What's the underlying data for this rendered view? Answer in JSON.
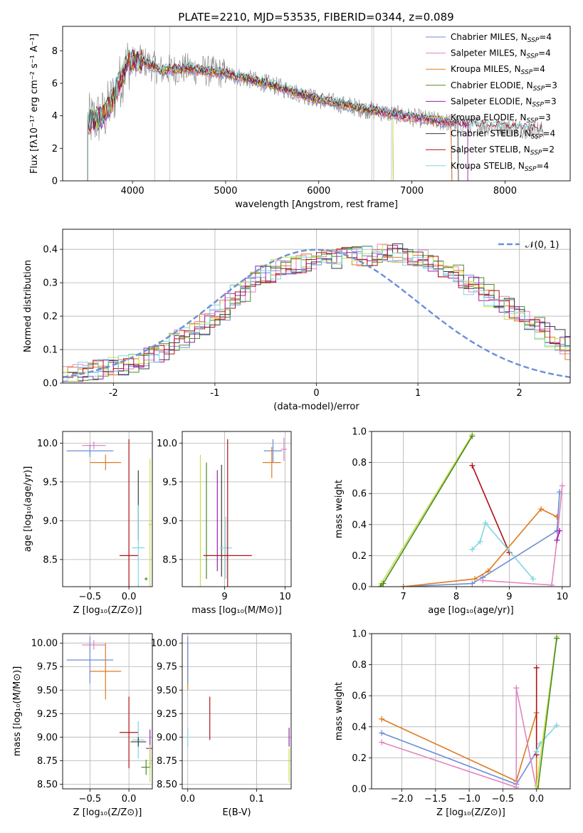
{
  "title": "PLATE=2210, MJD=53535, FIBERID=0344, z=0.089",
  "colors": {
    "chabrier_miles": "#6c8ed8",
    "salpeter_miles": "#e383c0",
    "kroupa_miles": "#e07a1f",
    "chabrier_elodie": "#4a8a2a",
    "salpeter_elodie": "#9a1fb0",
    "kroupa_elodie": "#c6e04a",
    "chabrier_stelib": "#3a3a3a",
    "salpeter_stelib": "#b01218",
    "kroupa_stelib": "#7fd6e0",
    "data": "#808080",
    "grid": "#b0b0b0"
  },
  "chart_data": [
    {
      "id": "spectrum",
      "type": "line",
      "xlabel": "wavelength [Angstrom, rest frame]",
      "ylabel": "Flux [fλ10⁻¹⁷ erg cm⁻² s⁻¹ A⁻¹]",
      "xlim": [
        3250,
        8700
      ],
      "ylim": [
        0,
        9.5
      ],
      "xticks": [
        4000,
        5000,
        6000,
        7000,
        8000
      ],
      "yticks": [
        0,
        2,
        4,
        6,
        8
      ],
      "legend": [
        {
          "key": "chabrier_miles",
          "label": "Chabrier MILES, N",
          "sub": "SSP",
          "tail": "=4"
        },
        {
          "key": "salpeter_miles",
          "label": "Salpeter MILES, N",
          "sub": "SSP",
          "tail": "=4"
        },
        {
          "key": "kroupa_miles",
          "label": "Kroupa MILES, N",
          "sub": "SSP",
          "tail": "=4"
        },
        {
          "key": "chabrier_elodie",
          "label": "Chabrier ELODIE, N",
          "sub": "SSP",
          "tail": "=3"
        },
        {
          "key": "salpeter_elodie",
          "label": "Salpeter ELODIE, N",
          "sub": "SSP",
          "tail": "=3"
        },
        {
          "key": "kroupa_elodie",
          "label": "Kroupa ELODIE, N",
          "sub": "SSP",
          "tail": "=3"
        },
        {
          "key": "chabrier_stelib",
          "label": "Chabrier STELIB, N",
          "sub": "SSP",
          "tail": "=4"
        },
        {
          "key": "salpeter_stelib",
          "label": "Salpeter STELIB, N",
          "sub": "SSP",
          "tail": "=2"
        },
        {
          "key": "kroupa_stelib",
          "label": "Kroupa STELIB, N",
          "sub": "SSP",
          "tail": "=4"
        }
      ],
      "legend_position": "top-right",
      "model_anchor_x": [
        3520,
        3700,
        3800,
        3950,
        4100,
        4300,
        4600,
        5000,
        5500,
        6000,
        6500,
        7000,
        7500,
        8000,
        8400
      ],
      "model_anchor_y": [
        3.6,
        4.0,
        5.2,
        7.3,
        7.4,
        6.8,
        6.9,
        6.6,
        5.9,
        5.0,
        4.4,
        3.9,
        3.5,
        3.3,
        3.1
      ]
    },
    {
      "id": "residuals",
      "type": "step",
      "xlabel": "(data-model)/error",
      "ylabel": "Normed distribution",
      "xlim": [
        -2.5,
        2.5
      ],
      "ylim": [
        0,
        0.46
      ],
      "xticks": [
        -2,
        -1,
        0,
        1,
        2
      ],
      "yticks": [
        0.0,
        0.1,
        0.2,
        0.3,
        0.4
      ],
      "legend": "𝒩(0, 1)",
      "legend_position": "top-right",
      "bin_width": 0.1,
      "profile": [
        0.02,
        0.03,
        0.035,
        0.04,
        0.045,
        0.05,
        0.06,
        0.07,
        0.08,
        0.09,
        0.11,
        0.13,
        0.15,
        0.17,
        0.19,
        0.21,
        0.24,
        0.27,
        0.3,
        0.32,
        0.33,
        0.34,
        0.35,
        0.36,
        0.37,
        0.37,
        0.37,
        0.38,
        0.38,
        0.38,
        0.38,
        0.39,
        0.39,
        0.39,
        0.38,
        0.37,
        0.36,
        0.34,
        0.33,
        0.31,
        0.29,
        0.27,
        0.25,
        0.23,
        0.21,
        0.19,
        0.17,
        0.15,
        0.13,
        0.11,
        0.1,
        0.09,
        0.08,
        0.07,
        0.06,
        0.05,
        0.045,
        0.04,
        0.035,
        0.03,
        0.03,
        0.025,
        0.02,
        0.02,
        0.02
      ]
    },
    {
      "id": "age_vs_Z",
      "type": "errorbar",
      "xlabel": "Z [log₁₀(Z/Z⊙)]",
      "ylabel": "age  [log₁₀(age/yr)]",
      "xlim": [
        -0.85,
        0.3
      ],
      "ylim": [
        8.15,
        10.15
      ],
      "xticks": [
        -0.5,
        0.0
      ],
      "xticklabels": [
        "−0.5",
        "0.0"
      ],
      "yticks": [
        8.5,
        9.0,
        9.5,
        10.0
      ],
      "points": [
        {
          "key": "salpeter_miles",
          "x": -0.45,
          "xerr": 0.15,
          "y": 9.97,
          "yerr": 0.05
        },
        {
          "key": "chabrier_miles",
          "x": -0.5,
          "xerr": 0.3,
          "y": 9.9,
          "yerr": 0.08
        },
        {
          "key": "kroupa_miles",
          "x": -0.3,
          "xerr": 0.2,
          "y": 9.75,
          "yerr": 0.1
        },
        {
          "key": "salpeter_stelib",
          "x": 0.0,
          "xerr": 0.12,
          "y": 8.55,
          "yerr": 1.5
        },
        {
          "key": "chabrier_stelib",
          "x": 0.12,
          "xerr": 0.0,
          "y": 9.2,
          "yerr": 0.45
        },
        {
          "key": "kroupa_stelib",
          "x": 0.12,
          "xerr": 0.08,
          "y": 8.65,
          "yerr": 0.55
        },
        {
          "key": "kroupa_elodie",
          "x": 0.27,
          "xerr": 0.02,
          "y": 8.95,
          "yerr": 0.85
        },
        {
          "key": "chabrier_elodie",
          "x": 0.22,
          "xerr": 0.02,
          "y": 8.25,
          "yerr": 0.02
        }
      ]
    },
    {
      "id": "age_vs_mass",
      "type": "errorbar",
      "xlabel": "mass [log₁₀(M/M⊙)]",
      "ylabel": "",
      "xlim": [
        8.3,
        10.1
      ],
      "ylim": [
        8.15,
        10.15
      ],
      "xticks": [
        9,
        10
      ],
      "yticks": [
        8.5,
        9.0,
        9.5,
        10.0
      ],
      "points": [
        {
          "key": "kroupa_elodie",
          "x": 8.6,
          "xerr": 0.0,
          "y": 9.0,
          "yerr": 0.85
        },
        {
          "key": "chabrier_elodie",
          "x": 8.7,
          "xerr": 0.0,
          "y": 9.0,
          "yerr": 0.75
        },
        {
          "key": "salpeter_elodie",
          "x": 8.88,
          "xerr": 0.0,
          "y": 9.0,
          "yerr": 0.65
        },
        {
          "key": "chabrier_stelib",
          "x": 8.95,
          "xerr": 0.0,
          "y": 9.0,
          "yerr": 0.72
        },
        {
          "key": "kroupa_stelib",
          "x": 9.02,
          "xerr": 0.1,
          "y": 8.65,
          "yerr": 0.4
        },
        {
          "key": "salpeter_stelib",
          "x": 9.05,
          "xerr": 0.4,
          "y": 8.55,
          "yerr": 1.5
        },
        {
          "key": "chabrier_miles",
          "x": 9.8,
          "xerr": 0.15,
          "y": 9.9,
          "yerr": 0.15
        },
        {
          "key": "kroupa_miles",
          "x": 9.78,
          "xerr": 0.15,
          "y": 9.75,
          "yerr": 0.2
        },
        {
          "key": "salpeter_miles",
          "x": 9.98,
          "xerr": 0.05,
          "y": 9.92,
          "yerr": 0.15
        }
      ]
    },
    {
      "id": "weight_vs_age",
      "type": "line",
      "xlabel": "age  [log₁₀(age/yr)]",
      "ylabel": "mass weight",
      "xlim": [
        6.4,
        10.15
      ],
      "ylim": [
        0,
        1.0
      ],
      "xticks": [
        7,
        8,
        9,
        10
      ],
      "yticks": [
        0.0,
        0.2,
        0.4,
        0.6,
        0.8,
        1.0
      ],
      "series": [
        {
          "key": "kroupa_elodie",
          "x": [
            6.55,
            6.58,
            8.3
          ],
          "y": [
            0.0,
            0.02,
            0.98
          ]
        },
        {
          "key": "chabrier_elodie",
          "x": [
            6.57,
            6.62,
            8.3
          ],
          "y": [
            0.0,
            0.02,
            0.97
          ]
        },
        {
          "key": "salpeter_stelib",
          "x": [
            8.3,
            9.0
          ],
          "y": [
            0.78,
            0.22
          ]
        },
        {
          "key": "chabrier_miles",
          "x": [
            7.0,
            8.3,
            8.5,
            9.9,
            9.95
          ],
          "y": [
            0.0,
            0.02,
            0.06,
            0.36,
            0.61
          ]
        },
        {
          "key": "kroupa_miles",
          "x": [
            7.0,
            8.35,
            8.6,
            9.6,
            9.9
          ],
          "y": [
            0.0,
            0.05,
            0.1,
            0.5,
            0.45
          ]
        },
        {
          "key": "salpeter_miles",
          "x": [
            8.5,
            9.8,
            9.9,
            10.0
          ],
          "y": [
            0.04,
            0.01,
            0.3,
            0.65
          ]
        },
        {
          "key": "kroupa_stelib",
          "x": [
            8.3,
            8.45,
            8.55,
            9.45
          ],
          "y": [
            0.24,
            0.29,
            0.41,
            0.05
          ]
        },
        {
          "key": "salpeter_elodie",
          "x": [
            9.9,
            9.95
          ],
          "y": [
            0.3,
            0.36
          ]
        }
      ]
    },
    {
      "id": "mass_vs_Z",
      "type": "errorbar",
      "xlabel": "Z [log₁₀(Z/Z⊙)]",
      "ylabel": "mass [log₁₀(M/M⊙)]",
      "xlim": [
        -0.85,
        0.3
      ],
      "ylim": [
        8.45,
        10.1
      ],
      "xticks": [
        -0.5,
        0.0
      ],
      "xticklabels": [
        "−0.5",
        "0.0"
      ],
      "yticks": [
        8.5,
        8.75,
        9.0,
        9.25,
        9.5,
        9.75,
        10.0
      ],
      "yticklabels": [
        "8.50",
        "8.75",
        "9.00",
        "9.25",
        "9.50",
        "9.75",
        "10.00"
      ],
      "points": [
        {
          "key": "salpeter_miles",
          "x": -0.45,
          "xerr": 0.15,
          "y": 9.98,
          "yerr": 0.05
        },
        {
          "key": "chabrier_miles",
          "x": -0.5,
          "xerr": 0.3,
          "y": 9.82,
          "yerr": 0.25
        },
        {
          "key": "kroupa_miles",
          "x": -0.3,
          "xerr": 0.2,
          "y": 9.7,
          "yerr": 0.3
        },
        {
          "key": "salpeter_stelib",
          "x": 0.0,
          "xerr": 0.12,
          "y": 9.05,
          "yerr": 0.38
        },
        {
          "key": "kroupa_stelib",
          "x": 0.12,
          "xerr": 0.08,
          "y": 8.97,
          "yerr": 0.2
        },
        {
          "key": "chabrier_stelib",
          "x": 0.12,
          "xerr": 0.1,
          "y": 8.95,
          "yerr": 0.05
        },
        {
          "key": "salpeter_elodie",
          "x": 0.27,
          "xerr": 0.05,
          "y": 8.88,
          "yerr": 0.2
        },
        {
          "key": "chabrier_elodie",
          "x": 0.22,
          "xerr": 0.06,
          "y": 8.68,
          "yerr": 0.08
        },
        {
          "key": "kroupa_elodie",
          "x": 0.27,
          "xerr": 0.02,
          "y": 8.72,
          "yerr": 0.2
        }
      ]
    },
    {
      "id": "mass_vs_ebv",
      "type": "errorbar",
      "xlabel": "E(B-V)",
      "ylabel": "",
      "xlim": [
        -0.008,
        0.15
      ],
      "ylim": [
        8.45,
        10.1
      ],
      "xticks": [
        0.0,
        0.1
      ],
      "xticklabels": [
        "0.0",
        "0.1"
      ],
      "yticks": [
        8.5,
        8.75,
        9.0,
        9.25,
        9.5,
        9.75,
        10.0
      ],
      "yticklabels": [
        "8.50",
        "8.75",
        "9.00",
        "9.25",
        "9.50",
        "9.75",
        "10.00"
      ],
      "points": [
        {
          "key": "kroupa_miles",
          "x": 0.0,
          "xerr": 0.0,
          "y": 9.75,
          "yerr": 0.25
        },
        {
          "key": "salpeter_miles",
          "x": 0.0,
          "xerr": 0.0,
          "y": 9.92,
          "yerr": 0.1
        },
        {
          "key": "chabrier_miles",
          "x": 0.0,
          "xerr": 0.0,
          "y": 9.82,
          "yerr": 0.25
        },
        {
          "key": "kroupa_stelib",
          "x": 0.0,
          "xerr": 0.0,
          "y": 9.0,
          "yerr": 0.1
        },
        {
          "key": "salpeter_stelib",
          "x": 0.032,
          "xerr": 0.0,
          "y": 9.2,
          "yerr": 0.23
        },
        {
          "key": "salpeter_elodie",
          "x": 0.147,
          "xerr": 0.0,
          "y": 9.0,
          "yerr": 0.1
        },
        {
          "key": "kroupa_elodie",
          "x": 0.147,
          "xerr": 0.0,
          "y": 8.7,
          "yerr": 0.18
        }
      ]
    },
    {
      "id": "weight_vs_Z",
      "type": "line",
      "xlabel": "Z [log₁₀(Z/Z⊙)]",
      "ylabel": "mass weight",
      "xlim": [
        -2.45,
        0.5
      ],
      "ylim": [
        0,
        1.0
      ],
      "xticks": [
        -2.0,
        -1.5,
        -1.0,
        -0.5,
        0.0
      ],
      "xticklabels": [
        "−2.0",
        "−1.5",
        "−1.0",
        "−0.5",
        "0.0"
      ],
      "yticks": [
        0.0,
        0.2,
        0.4,
        0.6,
        0.8,
        1.0
      ],
      "series": [
        {
          "key": "kroupa_miles",
          "x": [
            -2.3,
            -0.3,
            0.0,
            0.0
          ],
          "y": [
            0.45,
            0.05,
            0.49,
            0.0
          ]
        },
        {
          "key": "chabrier_miles",
          "x": [
            -2.3,
            -0.3,
            0.0
          ],
          "y": [
            0.36,
            0.03,
            0.24
          ]
        },
        {
          "key": "salpeter_miles",
          "x": [
            -2.3,
            -0.3,
            -0.3,
            0.0
          ],
          "y": [
            0.3,
            0.01,
            0.65,
            0.0
          ]
        },
        {
          "key": "salpeter_stelib",
          "x": [
            0.0,
            0.0
          ],
          "y": [
            0.78,
            0.22
          ]
        },
        {
          "key": "kroupa_stelib",
          "x": [
            0.0,
            0.05,
            0.3
          ],
          "y": [
            0.24,
            0.29,
            0.41
          ]
        },
        {
          "key": "kroupa_elodie",
          "x": [
            0.0,
            0.3
          ],
          "y": [
            0.02,
            0.98
          ]
        },
        {
          "key": "chabrier_elodie",
          "x": [
            0.02,
            0.3
          ],
          "y": [
            0.0,
            0.97
          ]
        }
      ]
    }
  ]
}
